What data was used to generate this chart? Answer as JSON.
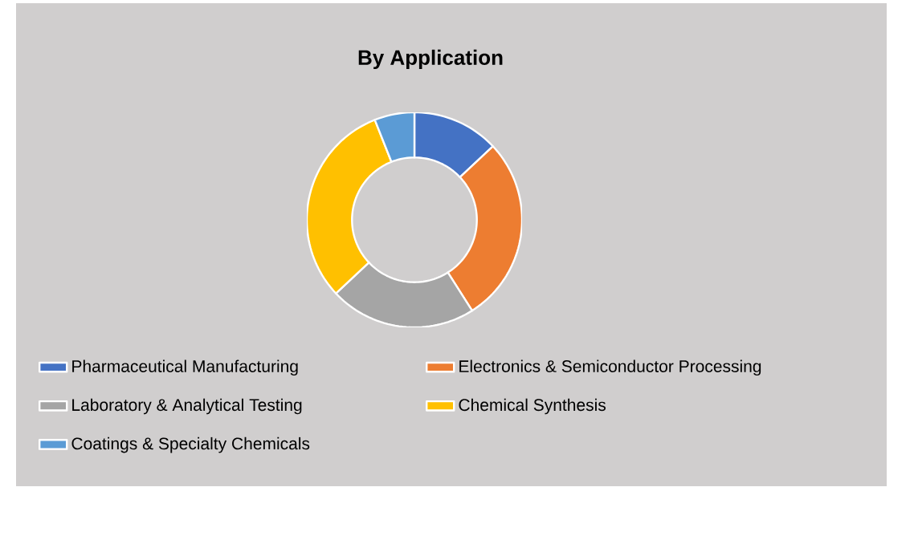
{
  "chart_data": {
    "type": "donut",
    "title": "By Application",
    "categories": [
      "Pharmaceutical Manufacturing",
      "Electronics & Semiconductor Processing",
      "Laboratory & Analytical Testing",
      "Chemical Synthesis",
      "Coatings & Specialty Chemicals"
    ],
    "values": [
      13,
      28,
      22,
      31,
      6
    ],
    "colors": [
      "#4472c4",
      "#ed7d31",
      "#a5a5a5",
      "#ffc000",
      "#5b9bd5"
    ],
    "legend": "bottom"
  }
}
